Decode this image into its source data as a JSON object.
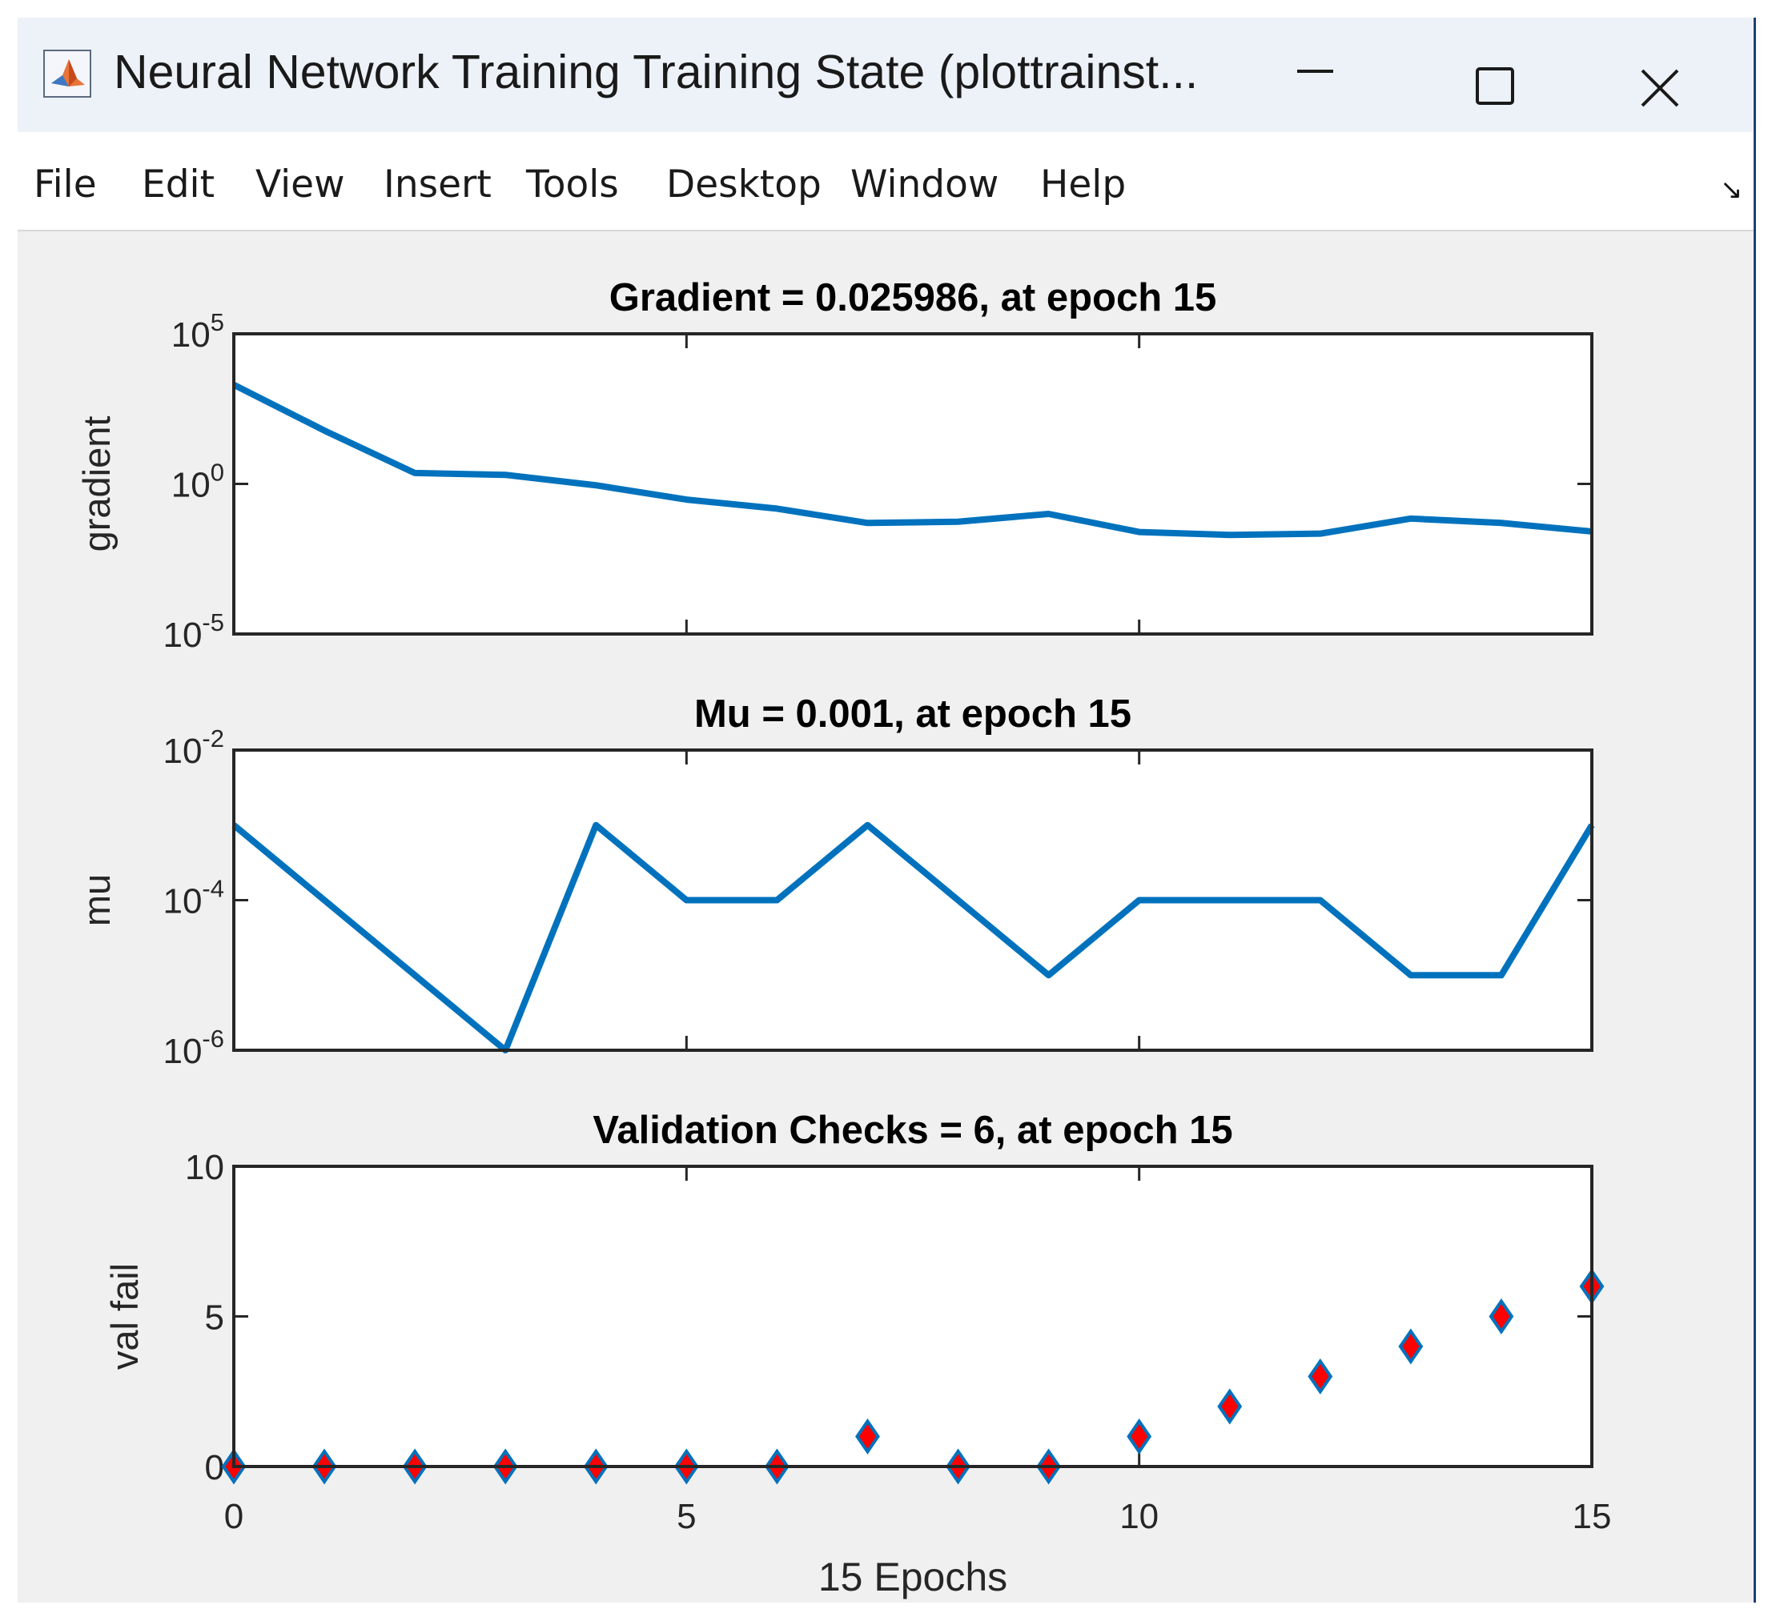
{
  "window": {
    "title": "Neural Network Training Training State (plottrainst...",
    "icon": "matlab-figure-icon",
    "controls": [
      "minimize-icon",
      "maximize-icon",
      "close-icon"
    ]
  },
  "menu": {
    "items": [
      "File",
      "Edit",
      "View",
      "Insert",
      "Tools",
      "Desktop",
      "Window",
      "Help"
    ],
    "dock_icon": "dock-arrow-icon",
    "dock_glyph": "↘"
  },
  "colors": {
    "line": "#0072bd",
    "marker_fill": "#ff0000",
    "marker_edge": "#0072bd",
    "axes_bg": "#ffffff",
    "figure_bg": "#f0f0f0"
  },
  "chart_data": [
    {
      "type": "line",
      "title": "Gradient = 0.025986, at epoch 15",
      "ylabel": "gradient",
      "xlabel": "",
      "yscale": "log",
      "ylim": [
        1e-05,
        100000
      ],
      "yticks": [
        {
          "base": "10",
          "exp": "5"
        },
        {
          "base": "10",
          "exp": "0"
        },
        {
          "base": "10",
          "exp": "-5"
        }
      ],
      "xlim": [
        0,
        15
      ],
      "x": [
        0,
        1,
        2,
        3,
        4,
        5,
        6,
        7,
        8,
        9,
        10,
        11,
        12,
        13,
        14,
        15
      ],
      "values": [
        2000,
        60,
        2.3,
        2.0,
        0.9,
        0.3,
        0.15,
        0.05,
        0.055,
        0.1,
        0.025,
        0.02,
        0.022,
        0.07,
        0.05,
        0.026
      ],
      "grid": false
    },
    {
      "type": "line",
      "title": "Mu = 0.001, at epoch 15",
      "ylabel": "mu",
      "xlabel": "",
      "yscale": "log",
      "ylim": [
        1e-06,
        0.01
      ],
      "yticks": [
        {
          "base": "10",
          "exp": "-2"
        },
        {
          "base": "10",
          "exp": "-4"
        },
        {
          "base": "10",
          "exp": "-6"
        }
      ],
      "xlim": [
        0,
        15
      ],
      "x": [
        0,
        1,
        2,
        3,
        4,
        5,
        6,
        7,
        8,
        9,
        10,
        11,
        12,
        13,
        14,
        15
      ],
      "values": [
        0.001,
        0.0001,
        1e-05,
        1e-06,
        0.001,
        0.0001,
        0.0001,
        0.001,
        0.0001,
        1e-05,
        0.0001,
        0.0001,
        0.0001,
        1e-05,
        1e-05,
        0.001
      ],
      "grid": false
    },
    {
      "type": "scatter",
      "title": "Validation Checks = 6, at epoch 15",
      "ylabel": "val fail",
      "xlabel": "15 Epochs",
      "yscale": "linear",
      "ylim": [
        0,
        10
      ],
      "yticks": [
        {
          "base": "10",
          "exp": ""
        },
        {
          "base": "5",
          "exp": ""
        },
        {
          "base": "0",
          "exp": ""
        }
      ],
      "xlim": [
        0,
        15
      ],
      "xticks": [
        "0",
        "5",
        "10",
        "15"
      ],
      "x": [
        0,
        1,
        2,
        3,
        4,
        5,
        6,
        7,
        8,
        9,
        10,
        11,
        12,
        13,
        14,
        15
      ],
      "values": [
        0,
        0,
        0,
        0,
        0,
        0,
        0,
        1,
        0,
        0,
        1,
        2,
        3,
        4,
        5,
        6
      ],
      "marker": "diamond",
      "grid": false
    }
  ]
}
